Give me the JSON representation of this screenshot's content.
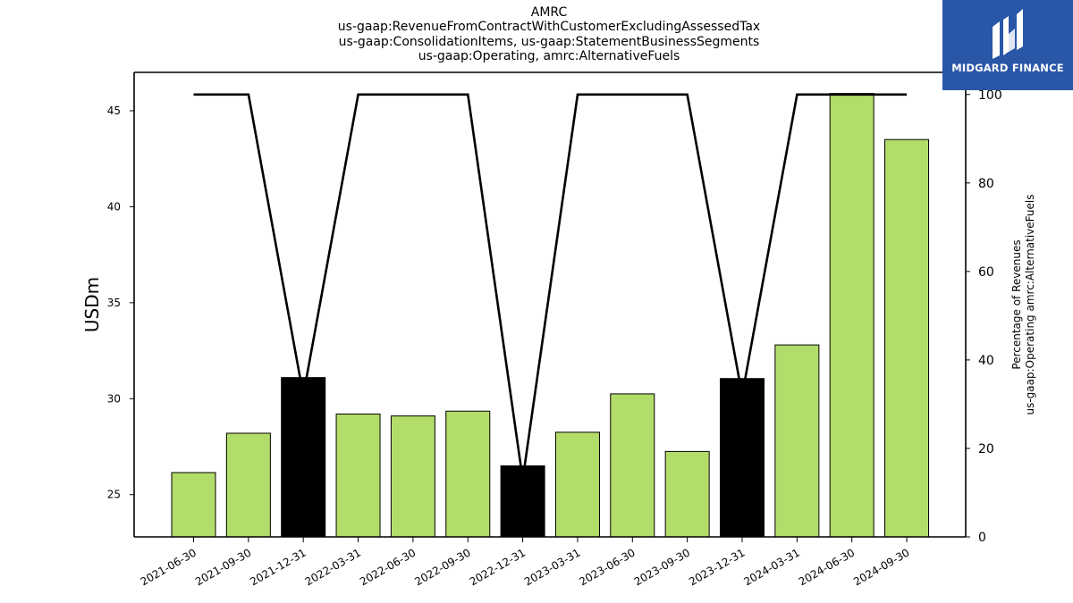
{
  "chart_data": {
    "type": "bar",
    "title": [
      "AMRC",
      "us-gaap:RevenueFromContractWithCustomerExcludingAssessedTax",
      "us-gaap:ConsolidationItems, us-gaap:StatementBusinessSegments",
      "us-gaap:Operating, amrc:AlternativeFuels"
    ],
    "categories": [
      "2021-06-30",
      "2021-09-30",
      "2021-12-31",
      "2022-03-31",
      "2022-06-30",
      "2022-09-30",
      "2022-12-31",
      "2023-03-31",
      "2023-06-30",
      "2023-09-30",
      "2023-12-31",
      "2024-03-31",
      "2024-06-30",
      "2024-09-30"
    ],
    "series": [
      {
        "axis": "left",
        "values": [
          26.15,
          28.2,
          31.1,
          29.2,
          29.1,
          29.35,
          26.5,
          28.25,
          30.25,
          27.25,
          31.05,
          32.8,
          45.9,
          43.5
        ],
        "colors": [
          "#b3dd6a",
          "#b3dd6a",
          "#000000",
          "#b3dd6a",
          "#b3dd6a",
          "#b3dd6a",
          "#000000",
          "#b3dd6a",
          "#b3dd6a",
          "#b3dd6a",
          "#000000",
          "#b3dd6a",
          "#b3dd6a",
          "#b3dd6a"
        ]
      },
      {
        "axis": "right",
        "type": "line",
        "values": [
          100,
          100,
          32,
          100,
          100,
          100,
          13,
          100,
          100,
          100,
          32,
          100,
          100,
          100
        ],
        "color": "#000000"
      }
    ],
    "ylabel": "USDm",
    "ylabel_right": [
      "Percentage of Revenues",
      "us-gaap:Operating amrc:AlternativeFuels"
    ],
    "ylim": [
      22.8,
      47.0
    ],
    "yticks": [
      25,
      30,
      35,
      40,
      45
    ],
    "ylim_right": [
      0,
      105
    ],
    "yticks_right": [
      0,
      20,
      40,
      60,
      80,
      100
    ],
    "grid": false,
    "legend": "none"
  },
  "logo": {
    "text": "MIDGARD FINANCE",
    "background": "#2a56a8"
  }
}
